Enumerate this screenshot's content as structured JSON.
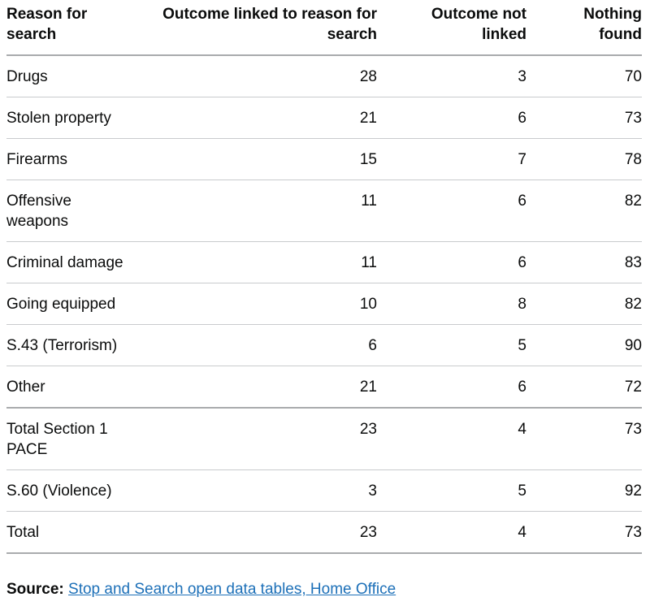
{
  "table": {
    "headers": {
      "reason": "Reason for search",
      "linked": "Outcome linked to reason for search",
      "not_linked": "Outcome not linked",
      "nothing_found": "Nothing found"
    },
    "rows": [
      {
        "reason": "Drugs",
        "linked": "28",
        "not_linked": "3",
        "nothing_found": "70"
      },
      {
        "reason": "Stolen property",
        "linked": "21",
        "not_linked": "6",
        "nothing_found": "73"
      },
      {
        "reason": "Firearms",
        "linked": "15",
        "not_linked": "7",
        "nothing_found": "78"
      },
      {
        "reason": "Offensive weapons",
        "linked": "11",
        "not_linked": "6",
        "nothing_found": "82"
      },
      {
        "reason": "Criminal damage",
        "linked": "11",
        "not_linked": "6",
        "nothing_found": "83"
      },
      {
        "reason": "Going equipped",
        "linked": "10",
        "not_linked": "8",
        "nothing_found": "82"
      },
      {
        "reason": "S.43 (Terrorism)",
        "linked": "6",
        "not_linked": "5",
        "nothing_found": "90"
      },
      {
        "reason": "Other",
        "linked": "21",
        "not_linked": "6",
        "nothing_found": "72"
      },
      {
        "reason": "Total Section 1 PACE",
        "linked": "23",
        "not_linked": "4",
        "nothing_found": "73"
      },
      {
        "reason": "S.60 (Violence)",
        "linked": "3",
        "not_linked": "5",
        "nothing_found": "92"
      },
      {
        "reason": "Total",
        "linked": "23",
        "not_linked": "4",
        "nothing_found": "73"
      }
    ]
  },
  "source": {
    "prefix": "Source:",
    "link_text": "Stop and Search open data tables, Home Office"
  },
  "colors": {
    "text": "#0b0c0c",
    "link": "#1d70b8",
    "border_strong": "#a9abad",
    "border_light": "#c9cbcd"
  }
}
